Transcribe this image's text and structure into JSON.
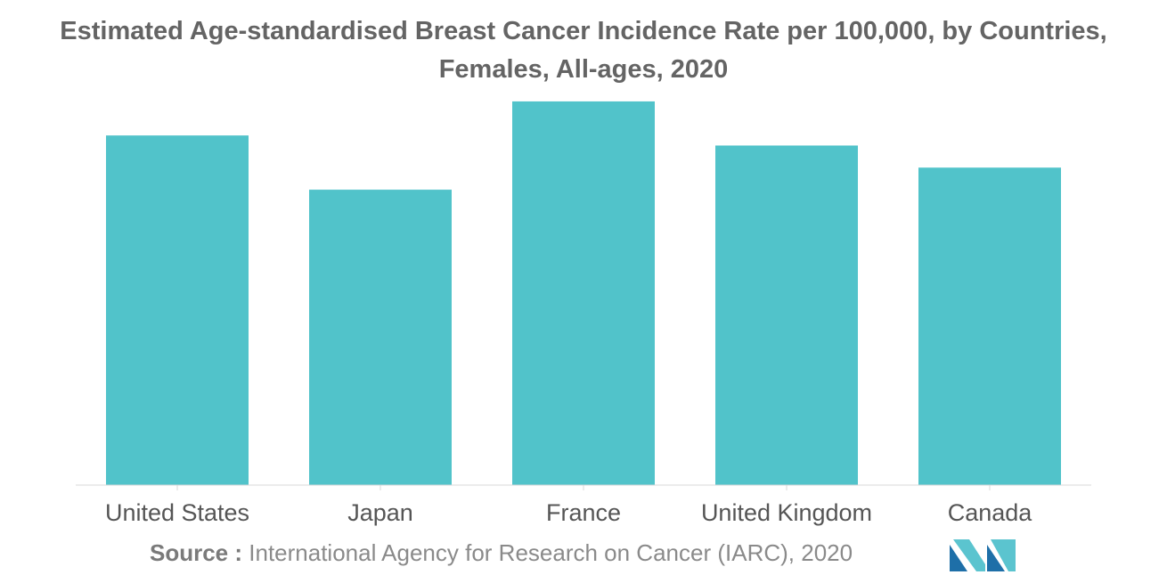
{
  "chart_data": {
    "type": "bar",
    "title_lines": [
      "Estimated Age-standardised Breast Cancer Incidence Rate per 100,000, by Countries,",
      "Females, All-ages, 2020"
    ],
    "categories": [
      "United States",
      "Japan",
      "France",
      "United Kingdom",
      "Canada"
    ],
    "values": [
      90.3,
      76.3,
      99.1,
      87.7,
      82.0
    ],
    "xlabel": "",
    "ylabel": "",
    "ylim": [
      0,
      100
    ],
    "grid": false,
    "legend": "none",
    "bar_color": "#51c3ca",
    "axis_color": "#d9d9d9",
    "tick_label_color": "#555555"
  },
  "source": {
    "label": "Source :",
    "text": "International Agency for Research on Cancer (IARC), 2020"
  },
  "logo": {
    "icon": "mordor-intelligence-logo-icon",
    "color_dark": "#1e6fa8",
    "color_light": "#5bc4cf"
  }
}
